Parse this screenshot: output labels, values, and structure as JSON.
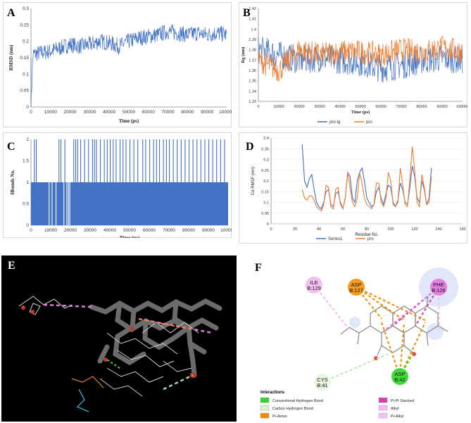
{
  "chart_data": [
    {
      "panel": "A",
      "type": "line",
      "title": "",
      "xlabel": "Time (ps)",
      "ylabel": "RMSD (nm)",
      "xlim": [
        0,
        100000
      ],
      "ylim": [
        0,
        0.3
      ],
      "xticks": [
        "0",
        "10000",
        "20000",
        "30000",
        "40000",
        "50000",
        "60000",
        "70000",
        "80000",
        "90000",
        "100000"
      ],
      "yticks": [
        "0",
        "0.05",
        "0.1",
        "0.15",
        "0.2",
        "0.25",
        "0.3"
      ],
      "series": [
        {
          "name": "RMSD",
          "color": "#4472c4",
          "x": [
            0,
            1000,
            5000,
            10000,
            15000,
            20000,
            25000,
            30000,
            35000,
            40000,
            45000,
            50000,
            55000,
            60000,
            65000,
            70000,
            75000,
            80000,
            85000,
            90000,
            95000,
            100000
          ],
          "y": [
            0,
            0.16,
            0.165,
            0.17,
            0.18,
            0.19,
            0.185,
            0.19,
            0.2,
            0.195,
            0.185,
            0.2,
            0.21,
            0.215,
            0.22,
            0.23,
            0.225,
            0.22,
            0.225,
            0.22,
            0.225,
            0.22
          ],
          "noise": 0.025
        }
      ]
    },
    {
      "panel": "B",
      "type": "line",
      "title": "",
      "xlabel": "Time (ps)",
      "ylabel": "Rg (nm)",
      "xlim": [
        0,
        100000
      ],
      "ylim": [
        1.33,
        1.42
      ],
      "xticks": [
        "0",
        "10000",
        "20000",
        "30000",
        "40000",
        "50000",
        "60000",
        "70000",
        "80000",
        "90000",
        "100000"
      ],
      "yticks": [
        "1.33",
        "1.34",
        "1.35",
        "1.36",
        "1.37",
        "1.38",
        "1.39",
        "1.4",
        "1.41",
        "1.42"
      ],
      "legend": "bottom",
      "series": [
        {
          "name": "pro-lg",
          "color": "#4472c4",
          "x": [
            0,
            10000,
            20000,
            30000,
            40000,
            50000,
            60000,
            70000,
            80000,
            90000,
            100000
          ],
          "y": [
            1.38,
            1.375,
            1.37,
            1.372,
            1.37,
            1.368,
            1.362,
            1.365,
            1.37,
            1.372,
            1.37
          ],
          "noise": 0.014
        },
        {
          "name": "pro",
          "color": "#ed7d31",
          "x": [
            0,
            10000,
            20000,
            30000,
            40000,
            50000,
            60000,
            70000,
            80000,
            90000,
            100000
          ],
          "y": [
            1.37,
            1.36,
            1.38,
            1.375,
            1.378,
            1.378,
            1.375,
            1.38,
            1.378,
            1.382,
            1.378
          ],
          "noise": 0.012
        }
      ]
    },
    {
      "panel": "C",
      "type": "bar",
      "title": "",
      "xlabel": "Time (ps)",
      "ylabel": "Hbonds No.",
      "xlim": [
        0,
        100000
      ],
      "ylim": [
        0,
        2
      ],
      "xticks": [
        "0",
        "10000",
        "20000",
        "30000",
        "40000",
        "50000",
        "60000",
        "70000",
        "80000",
        "90000",
        "100000"
      ],
      "yticks": [
        "0",
        "0.5",
        "1",
        "1.5",
        "2"
      ],
      "series": [
        {
          "name": "Hbonds",
          "color": "#4472c4",
          "base_value": 1,
          "two_hbond_times": [
            1500,
            2500,
            14000,
            15000,
            17000,
            21500,
            22500,
            23500,
            25000,
            27000,
            29000,
            31000,
            32000,
            33000,
            35000,
            37000,
            38500,
            40000,
            41500,
            43000,
            45000,
            46500,
            48000,
            50000,
            52000,
            54000,
            56500,
            58000,
            60000,
            62000,
            63500,
            65000,
            67000,
            68500,
            70000,
            72000,
            74000,
            76000,
            78000,
            80000,
            82000,
            84000,
            86000,
            88000,
            90000,
            92000,
            94000,
            96000,
            98000
          ],
          "zero_hbond_times": [
            9000,
            10500,
            12500,
            16500,
            18000,
            18800,
            19500
          ]
        }
      ]
    },
    {
      "panel": "D",
      "type": "line",
      "title": "",
      "xlabel": "Residue No.",
      "ylabel": "Cα RMSF (nm)",
      "xlim": [
        0,
        160
      ],
      "ylim": [
        0,
        0.4
      ],
      "xticks": [
        "0",
        "20",
        "40",
        "60",
        "80",
        "100",
        "120",
        "140",
        "160"
      ],
      "yticks": [
        "0",
        "0.05",
        "0.1",
        "0.15",
        "0.2",
        "0.25",
        "0.3",
        "0.35",
        "0.4"
      ],
      "legend": "bottom",
      "series": [
        {
          "name": "Series1",
          "color": "#4472c4",
          "x": [
            26,
            28,
            30,
            32,
            34,
            36,
            38,
            40,
            42,
            44,
            46,
            48,
            50,
            52,
            54,
            56,
            58,
            60,
            62,
            64,
            66,
            68,
            70,
            72,
            74,
            76,
            78,
            80,
            82,
            84,
            86,
            88,
            90,
            92,
            94,
            96,
            98,
            100,
            102,
            104,
            106,
            108,
            110,
            112,
            114,
            116,
            118,
            120,
            122,
            124,
            126,
            128,
            130,
            132,
            134
          ],
          "y": [
            0.37,
            0.2,
            0.17,
            0.21,
            0.23,
            0.16,
            0.1,
            0.08,
            0.07,
            0.1,
            0.15,
            0.16,
            0.09,
            0.08,
            0.14,
            0.15,
            0.1,
            0.07,
            0.12,
            0.24,
            0.22,
            0.12,
            0.1,
            0.2,
            0.24,
            0.26,
            0.2,
            0.12,
            0.1,
            0.08,
            0.09,
            0.15,
            0.17,
            0.12,
            0.09,
            0.14,
            0.18,
            0.17,
            0.1,
            0.08,
            0.11,
            0.19,
            0.16,
            0.1,
            0.09,
            0.17,
            0.27,
            0.22,
            0.12,
            0.1,
            0.2,
            0.16,
            0.09,
            0.12,
            0.26
          ]
        },
        {
          "name": "pro",
          "color": "#ed7d31",
          "x": [
            26,
            28,
            30,
            32,
            34,
            36,
            38,
            40,
            42,
            44,
            46,
            48,
            50,
            52,
            54,
            56,
            58,
            60,
            62,
            64,
            66,
            68,
            70,
            72,
            74,
            76,
            78,
            80,
            82,
            84,
            86,
            88,
            90,
            92,
            94,
            96,
            98,
            100,
            102,
            104,
            106,
            108,
            110,
            112,
            114,
            116,
            118,
            120,
            122,
            124,
            126,
            128,
            130,
            132,
            134
          ],
          "y": [
            0.16,
            0.12,
            0.11,
            0.13,
            0.13,
            0.11,
            0.08,
            0.07,
            0.06,
            0.09,
            0.18,
            0.17,
            0.08,
            0.07,
            0.16,
            0.17,
            0.09,
            0.07,
            0.12,
            0.24,
            0.17,
            0.1,
            0.08,
            0.12,
            0.24,
            0.19,
            0.12,
            0.09,
            0.08,
            0.07,
            0.09,
            0.19,
            0.19,
            0.1,
            0.08,
            0.12,
            0.24,
            0.2,
            0.09,
            0.08,
            0.1,
            0.26,
            0.18,
            0.09,
            0.08,
            0.21,
            0.36,
            0.25,
            0.1,
            0.08,
            0.23,
            0.17,
            0.09,
            0.1,
            0.22
          ]
        }
      ]
    }
  ],
  "panels": {
    "A": "A",
    "B": "B",
    "C": "C",
    "D": "D",
    "E": "E",
    "F": "F"
  },
  "interaction_panel": {
    "residues": [
      {
        "label": "ILE\nB:129",
        "color": "#f4c0f0"
      },
      {
        "label": "ASP\nB:127",
        "color": "#f59c1e"
      },
      {
        "label": "PHE\nB:126",
        "color": "#e57fe0"
      },
      {
        "label": "CYS\nB:41",
        "color": "#e8f7e4"
      },
      {
        "label": "ASP\nB:42",
        "color": "#41d93a"
      }
    ],
    "legend_title": "Interactions",
    "legend": [
      {
        "label": "Conventional Hydrogen Bond",
        "color": "#35d62a"
      },
      {
        "label": "Carbon Hydrogen Bond",
        "color": "#d6f5d0"
      },
      {
        "label": "Pi-Anion",
        "color": "#f08c00"
      },
      {
        "label": "Pi-Pi Stacked",
        "color": "#d43fb6"
      },
      {
        "label": "Alkyl",
        "color": "#f5b8f0"
      },
      {
        "label": "Pi-Alkyl",
        "color": "#f2c4ef"
      }
    ]
  }
}
